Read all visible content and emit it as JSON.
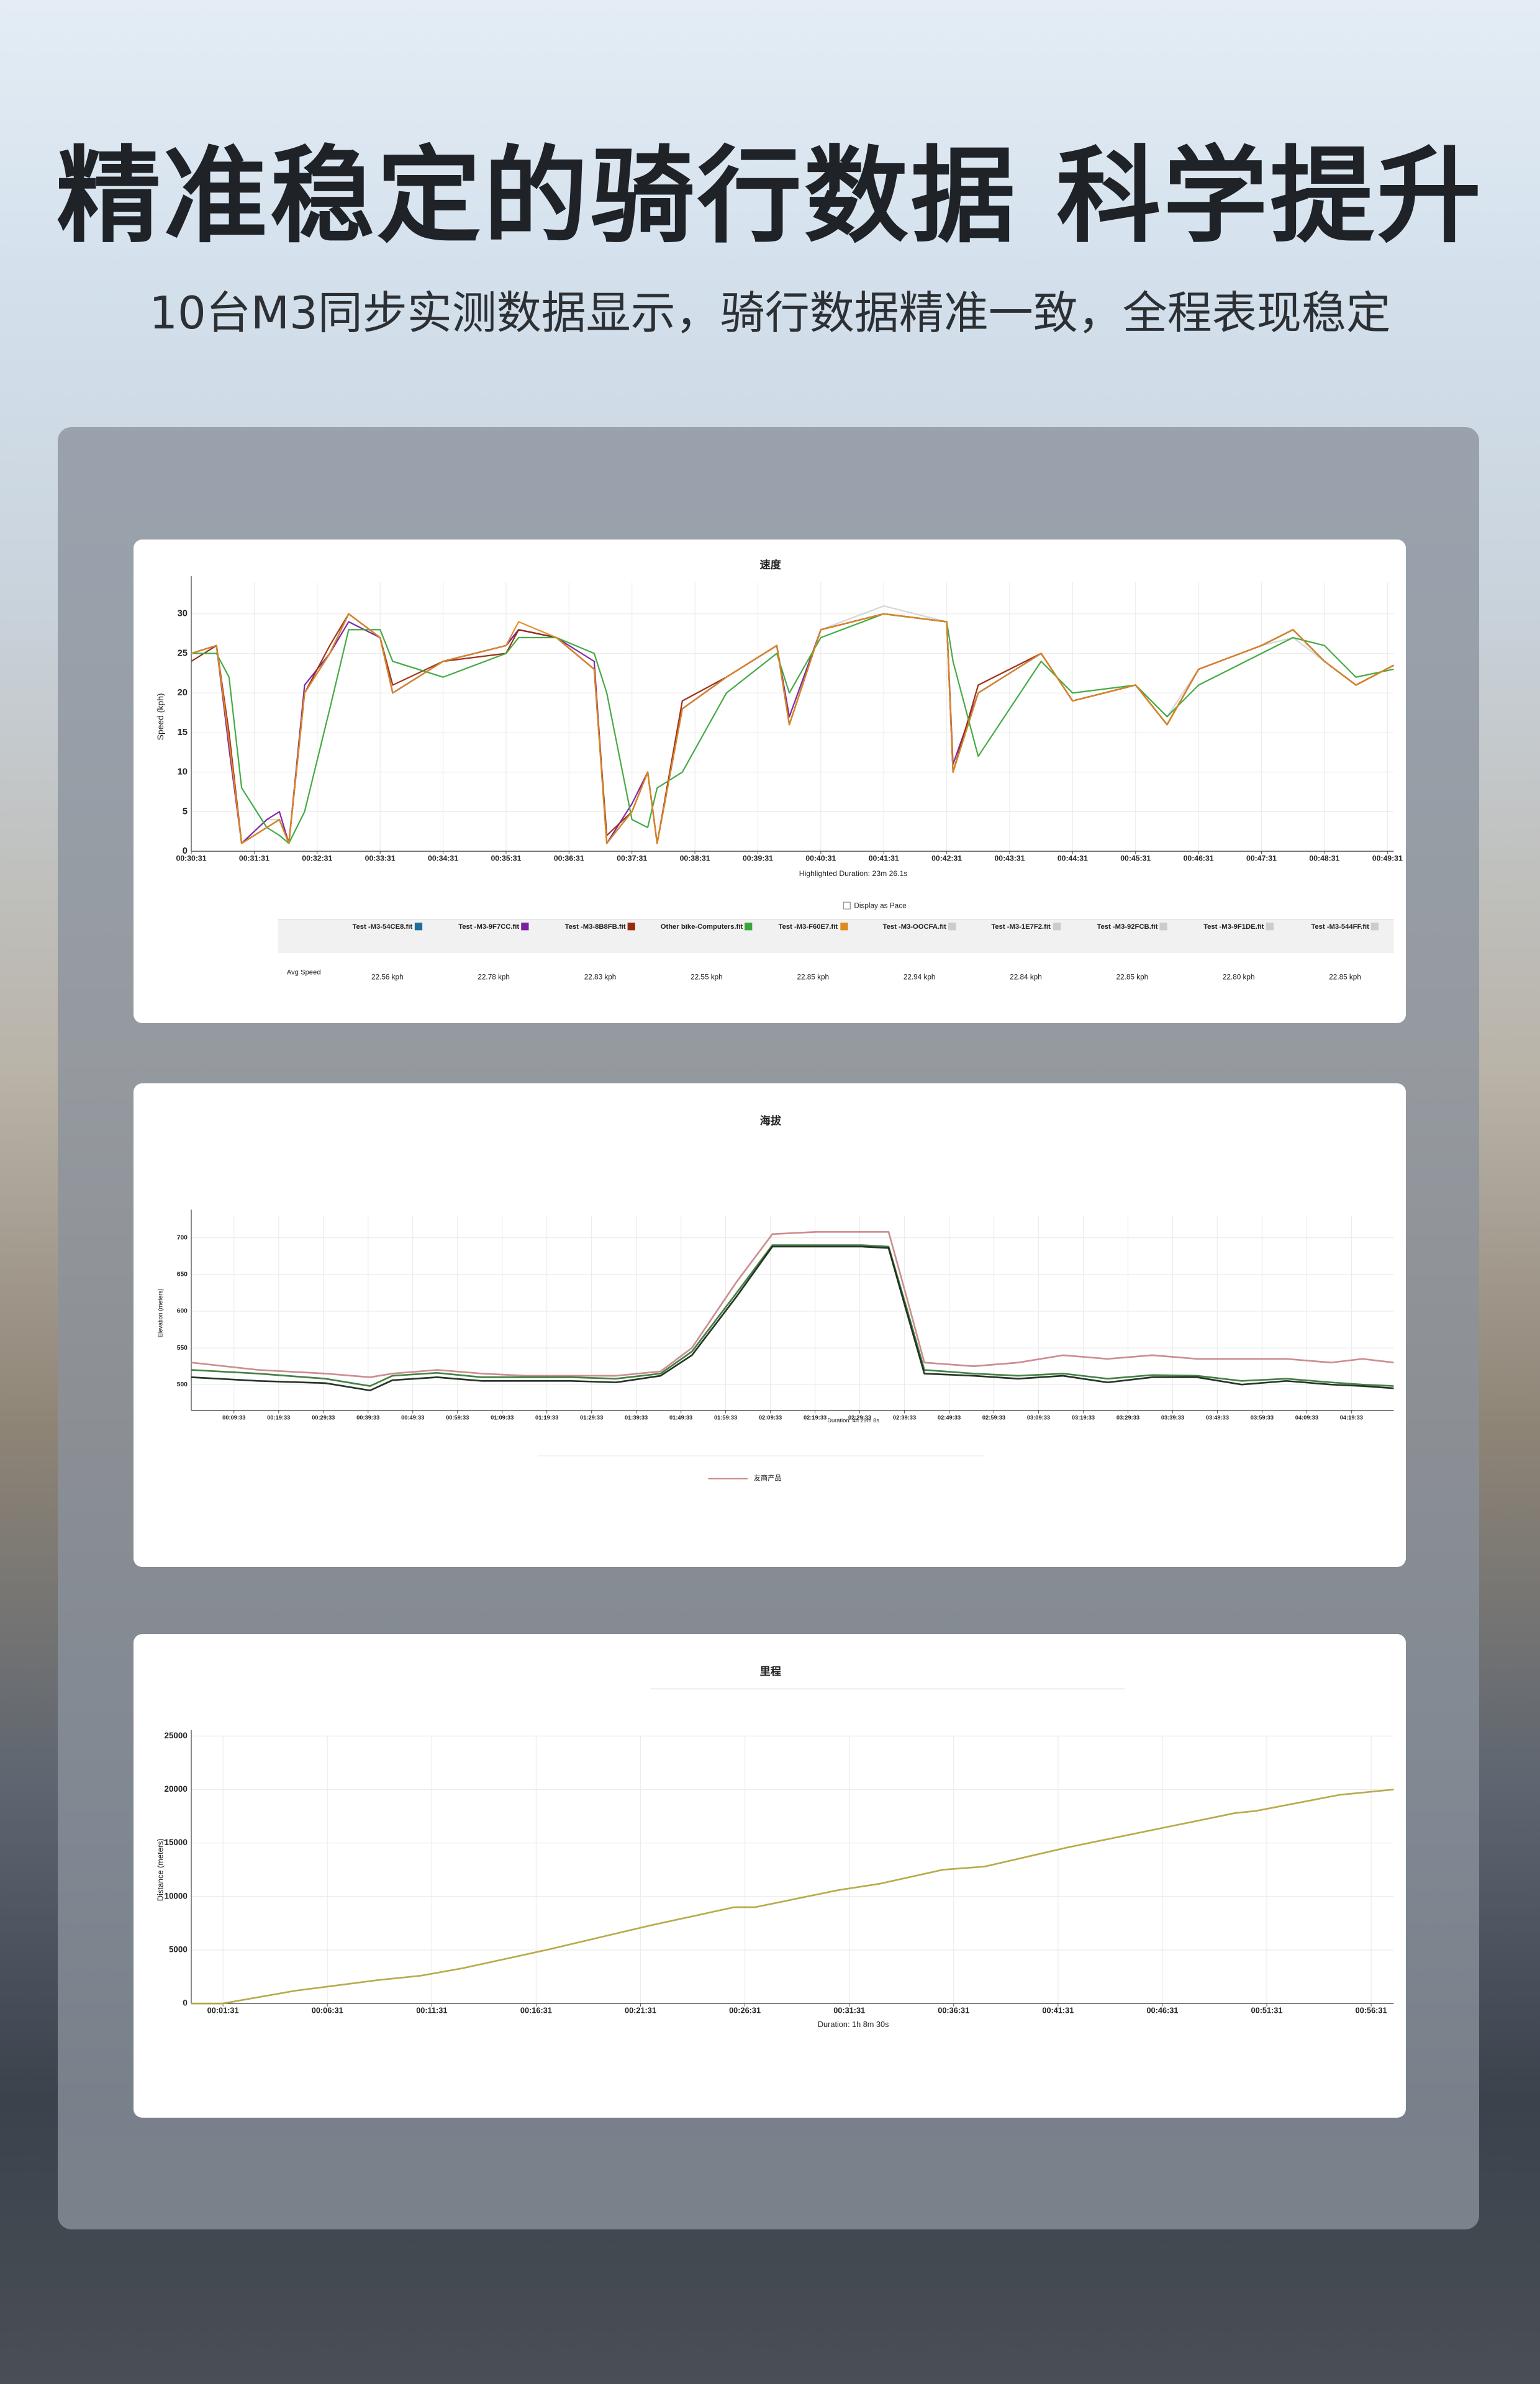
{
  "header": {
    "title": "精准稳定的骑行数据 科学提升",
    "subtitle": "10台M3同步实测数据显示，骑行数据精准一致，全程表现稳定"
  },
  "chart_data": [
    {
      "type": "line",
      "title": "速度",
      "ylabel": "Speed (kph)",
      "annotation": "Highlighted Duration: 23m 26.1s",
      "checkbox_label": "Display as Pace",
      "grid": true,
      "x": [
        0,
        0.4,
        0.6,
        0.8,
        1.2,
        1.4,
        1.55,
        1.8,
        2.2,
        2.5,
        3,
        3.2,
        4,
        5,
        5.2,
        5.8,
        6.4,
        6.6,
        7,
        7.25,
        7.4,
        7.8,
        8.5,
        9.3,
        9.5,
        10,
        11,
        12,
        12.1,
        12.5,
        13.5,
        14,
        15,
        15.5,
        16,
        17,
        17.5,
        18,
        18.5,
        19.1
      ],
      "xlim": [
        0,
        19.1
      ],
      "xticks": [
        {
          "value": 0,
          "label": "00:30:31"
        },
        {
          "value": 1,
          "label": "00:31:31"
        },
        {
          "value": 2,
          "label": "00:32:31"
        },
        {
          "value": 3,
          "label": "00:33:31"
        },
        {
          "value": 4,
          "label": "00:34:31"
        },
        {
          "value": 5,
          "label": "00:35:31"
        },
        {
          "value": 6,
          "label": "00:36:31"
        },
        {
          "value": 7,
          "label": "00:37:31"
        },
        {
          "value": 8,
          "label": "00:38:31"
        },
        {
          "value": 9,
          "label": "00:39:31"
        },
        {
          "value": 10,
          "label": "00:40:31"
        },
        {
          "value": 11,
          "label": "00:41:31"
        },
        {
          "value": 12,
          "label": "00:42:31"
        },
        {
          "value": 13,
          "label": "00:43:31"
        },
        {
          "value": 14,
          "label": "00:44:31"
        },
        {
          "value": 15,
          "label": "00:45:31"
        },
        {
          "value": 16,
          "label": "00:46:31"
        },
        {
          "value": 17,
          "label": "00:47:31"
        },
        {
          "value": 18,
          "label": "00:48:31"
        },
        {
          "value": 19,
          "label": "00:49:31"
        }
      ],
      "ylim": [
        0,
        34
      ],
      "yticks": [
        0,
        5,
        10,
        15,
        20,
        25,
        30
      ],
      "series": [
        {
          "name": "Test -M3-54CE8.fit",
          "color": "#1f6f9a",
          "values": [
            25,
            26,
            14,
            1,
            3,
            4,
            1,
            20,
            25,
            30,
            27,
            20,
            24,
            26,
            28,
            27,
            23,
            1,
            5,
            10,
            1,
            18,
            22,
            26,
            16,
            28,
            30,
            29,
            10,
            20,
            25,
            19,
            21,
            16,
            23,
            26,
            28,
            24,
            21,
            23.5
          ]
        },
        {
          "name": "Test -M3-9F7CC.fit",
          "color": "#7a1fa2",
          "values": [
            25,
            26,
            13,
            1,
            4,
            5,
            1,
            21,
            25,
            29,
            27,
            20,
            24,
            26,
            28,
            27,
            24,
            1,
            6,
            10,
            1,
            18,
            22,
            26,
            17,
            28,
            30,
            29,
            11,
            20,
            25,
            19,
            21,
            16,
            23,
            26,
            28,
            24,
            21,
            23.5
          ]
        },
        {
          "name": "Test -M3-8B8FB.fit",
          "color": "#9b2a12",
          "values": [
            24,
            26,
            15,
            1,
            3,
            4,
            1,
            20,
            26,
            30,
            27,
            21,
            24,
            25,
            28,
            27,
            23,
            2,
            5,
            10,
            1,
            19,
            22,
            26,
            16,
            28,
            30,
            29,
            10,
            21,
            25,
            19,
            21,
            16,
            23,
            26,
            28,
            24,
            21,
            23.5
          ]
        },
        {
          "name": "Other bike-Computers.fit",
          "color": "#3aa63a",
          "values": [
            25,
            25,
            22,
            8,
            3,
            2,
            1,
            5,
            18,
            28,
            28,
            24,
            22,
            25,
            27,
            27,
            25,
            20,
            4,
            3,
            8,
            10,
            20,
            25,
            20,
            27,
            30,
            29,
            24,
            12,
            24,
            20,
            21,
            17,
            21,
            25,
            27,
            26,
            22,
            23
          ]
        },
        {
          "name": "Test -M3-F60E7.fit",
          "color": "#e08a1e",
          "values": [
            25,
            26,
            14,
            1,
            3,
            4,
            1,
            20,
            25,
            30,
            27,
            20,
            24,
            26,
            29,
            27,
            23,
            1,
            5,
            10,
            1,
            18,
            22,
            26,
            16,
            28,
            30,
            29,
            10,
            20,
            25,
            19,
            21,
            16,
            23,
            26,
            28,
            24,
            21,
            23.5
          ]
        },
        {
          "name": "Test -M3-OOCFA.fit",
          "color": "#cccccc",
          "values": [
            24,
            26,
            14,
            1,
            3,
            4,
            1,
            20,
            25,
            29,
            27,
            20,
            24,
            26,
            28,
            27,
            23,
            1,
            5,
            10,
            1,
            18,
            22,
            26,
            16,
            28,
            30,
            29,
            10,
            20,
            25,
            19,
            21,
            16,
            23,
            26,
            28,
            24,
            21,
            23.5
          ]
        },
        {
          "name": "Test -M3-1E7F2.fit",
          "color": "#cccccc",
          "values": [
            25,
            26,
            14,
            1,
            3,
            4,
            1,
            20,
            25,
            30,
            27,
            20,
            24,
            25,
            28,
            27,
            23,
            1,
            5,
            10,
            1,
            18,
            22,
            26,
            16,
            28,
            31,
            29,
            10,
            20,
            25,
            19,
            21,
            16,
            23,
            26,
            28,
            24,
            21,
            23.5
          ]
        },
        {
          "name": "Test -M3-92FCB.fit",
          "color": "#cccccc",
          "values": [
            25,
            26,
            14,
            1,
            4,
            4,
            1,
            20,
            25,
            30,
            27,
            20,
            24,
            26,
            28,
            27,
            23,
            1,
            5,
            10,
            1,
            18,
            22,
            26,
            16,
            28,
            30,
            29,
            10,
            20,
            25,
            19,
            21,
            17,
            23,
            26,
            28,
            24,
            21,
            23.5
          ]
        },
        {
          "name": "Test -M3-9F1DE.fit",
          "color": "#cccccc",
          "values": [
            25,
            26,
            14,
            1,
            3,
            4,
            1,
            20,
            25,
            30,
            27,
            20,
            24,
            26,
            28,
            27,
            23,
            1,
            5,
            10,
            1,
            19,
            22,
            26,
            16,
            28,
            30,
            29,
            10,
            20,
            25,
            19,
            21,
            16,
            23,
            26,
            27,
            24,
            21,
            23.5
          ]
        },
        {
          "name": "Test -M3-544FF.fit",
          "color": "#cccccc",
          "values": [
            25,
            26,
            15,
            1,
            3,
            4,
            1,
            20,
            25,
            30,
            27,
            20,
            24,
            26,
            28,
            27,
            23,
            1,
            5,
            10,
            1,
            18,
            22,
            26,
            16,
            28,
            30,
            29,
            10,
            21,
            25,
            19,
            21,
            16,
            23,
            26,
            28,
            24,
            21,
            23.5
          ]
        }
      ],
      "avg_speed": {
        "label": "Avg Speed",
        "values": [
          22.56,
          22.78,
          22.83,
          22.55,
          22.85,
          22.94,
          22.84,
          22.85,
          22.8,
          22.85
        ],
        "value_labels": [
          "22.56 kph",
          "22.78 kph",
          "22.83 kph",
          "22.55 kph",
          "22.85 kph",
          "22.94 kph",
          "22.84 kph",
          "22.85 kph",
          "22.80 kph",
          "22.85 kph"
        ]
      }
    },
    {
      "type": "line",
      "title": "海拔",
      "ylabel": "Elevation (meters)",
      "annotation": "Duration: 4h 29m 8s",
      "grid": true,
      "legend": "bottom",
      "x": [
        0,
        15,
        30,
        40,
        45,
        55,
        65,
        75,
        85,
        95,
        105,
        112,
        122,
        130,
        140,
        150,
        156,
        160,
        164,
        175,
        185,
        195,
        205,
        215,
        225,
        235,
        245,
        255,
        262,
        269
      ],
      "xlim": [
        0,
        269
      ],
      "xticks": [
        {
          "value": 9.55,
          "label": "00:09:33"
        },
        {
          "value": 19.55,
          "label": "00:19:33"
        },
        {
          "value": 29.55,
          "label": "00:29:33"
        },
        {
          "value": 39.55,
          "label": "00:39:33"
        },
        {
          "value": 49.55,
          "label": "00:49:33"
        },
        {
          "value": 59.55,
          "label": "00:59:33"
        },
        {
          "value": 69.55,
          "label": "01:09:33"
        },
        {
          "value": 79.55,
          "label": "01:19:33"
        },
        {
          "value": 89.55,
          "label": "01:29:33"
        },
        {
          "value": 99.55,
          "label": "01:39:33"
        },
        {
          "value": 109.55,
          "label": "01:49:33"
        },
        {
          "value": 119.55,
          "label": "01:59:33"
        },
        {
          "value": 129.55,
          "label": "02:09:33"
        },
        {
          "value": 139.55,
          "label": "02:19:33"
        },
        {
          "value": 149.55,
          "label": "02:29:33"
        },
        {
          "value": 159.55,
          "label": "02:39:33"
        },
        {
          "value": 169.55,
          "label": "02:49:33"
        },
        {
          "value": 179.55,
          "label": "02:59:33"
        },
        {
          "value": 189.55,
          "label": "03:09:33"
        },
        {
          "value": 199.55,
          "label": "03:19:33"
        },
        {
          "value": 209.55,
          "label": "03:29:33"
        },
        {
          "value": 219.55,
          "label": "03:39:33"
        },
        {
          "value": 229.55,
          "label": "03:49:33"
        },
        {
          "value": 239.55,
          "label": "03:59:33"
        },
        {
          "value": 249.55,
          "label": "04:09:33"
        },
        {
          "value": 259.55,
          "label": "04:19:33"
        }
      ],
      "ylim": [
        465,
        730
      ],
      "yticks": [
        500,
        550,
        600,
        650,
        700
      ],
      "series": [
        {
          "name": "友商产品",
          "color": "#c9888a",
          "values": [
            530,
            520,
            515,
            510,
            515,
            520,
            515,
            512,
            512,
            512,
            518,
            550,
            640,
            705,
            708,
            708,
            708,
            620,
            530,
            525,
            530,
            540,
            535,
            540,
            535,
            535,
            535,
            530,
            535,
            530
          ]
        },
        {
          "color": "#3c7a3c",
          "values": [
            520,
            515,
            508,
            498,
            512,
            516,
            510,
            510,
            510,
            508,
            515,
            545,
            625,
            690,
            690,
            690,
            688,
            605,
            520,
            515,
            512,
            515,
            508,
            513,
            512,
            505,
            508,
            503,
            500,
            498
          ]
        },
        {
          "color": "#1a2a1a",
          "values": [
            510,
            505,
            502,
            492,
            506,
            510,
            505,
            505,
            505,
            503,
            512,
            540,
            620,
            688,
            688,
            688,
            686,
            600,
            515,
            512,
            508,
            512,
            503,
            510,
            510,
            500,
            505,
            500,
            498,
            495
          ]
        }
      ]
    },
    {
      "type": "line",
      "title": "里程",
      "ylabel": "Distance (meters)",
      "annotation": "Duration: 1h 8m 30s",
      "grid": true,
      "x": [
        0,
        1.5,
        5,
        9,
        11,
        13,
        17,
        22,
        26,
        27,
        31,
        33,
        36,
        38,
        42,
        46,
        50,
        51,
        55,
        57.6
      ],
      "xlim": [
        0,
        57.6
      ],
      "xticks": [
        {
          "value": 1.52,
          "label": "00:01:31"
        },
        {
          "value": 6.52,
          "label": "00:06:31"
        },
        {
          "value": 11.52,
          "label": "00:11:31"
        },
        {
          "value": 16.52,
          "label": "00:16:31"
        },
        {
          "value": 21.52,
          "label": "00:21:31"
        },
        {
          "value": 26.52,
          "label": "00:26:31"
        },
        {
          "value": 31.52,
          "label": "00:31:31"
        },
        {
          "value": 36.52,
          "label": "00:36:31"
        },
        {
          "value": 41.52,
          "label": "00:41:31"
        },
        {
          "value": 46.52,
          "label": "00:46:31"
        },
        {
          "value": 51.52,
          "label": "00:51:31"
        },
        {
          "value": 56.52,
          "label": "00:56:31"
        }
      ],
      "ylim": [
        0,
        25000
      ],
      "yticks": [
        0,
        5000,
        10000,
        15000,
        20000,
        25000
      ],
      "series": [
        {
          "color": "#b5a642",
          "values": [
            0,
            0,
            1200,
            2200,
            2600,
            3300,
            5000,
            7300,
            9000,
            9000,
            10600,
            11200,
            12500,
            12800,
            14600,
            16200,
            17800,
            18000,
            19500,
            20000
          ]
        }
      ]
    }
  ]
}
